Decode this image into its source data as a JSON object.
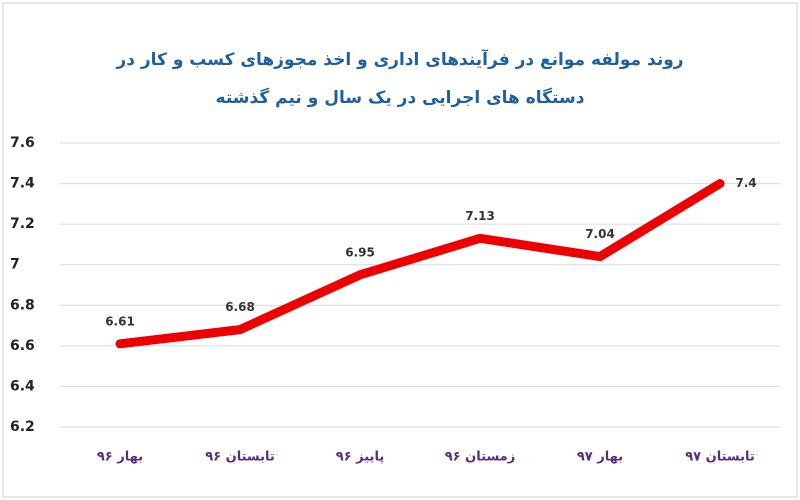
{
  "chart_data": {
    "type": "line",
    "title": [
      "روند مولفه موانع در فرآیندهای اداری و اخذ مجوزهای کسب و کار در",
      "دستگاه های اجرایی در یک سال و نیم گذشته"
    ],
    "categories": [
      "بهار ۹۶",
      "تابستان ۹۶",
      "پاییز ۹۶",
      "زمستان ۹۶",
      "بهار ۹۷",
      "تابستان ۹۷"
    ],
    "values": [
      6.61,
      6.68,
      6.95,
      7.13,
      7.04,
      7.4
    ],
    "color": "#ee0000",
    "ylim": [
      6.2,
      7.6
    ],
    "yticks": [
      6.2,
      6.4,
      6.6,
      6.8,
      7,
      7.2,
      7.4,
      7.6
    ],
    "grid": true
  }
}
